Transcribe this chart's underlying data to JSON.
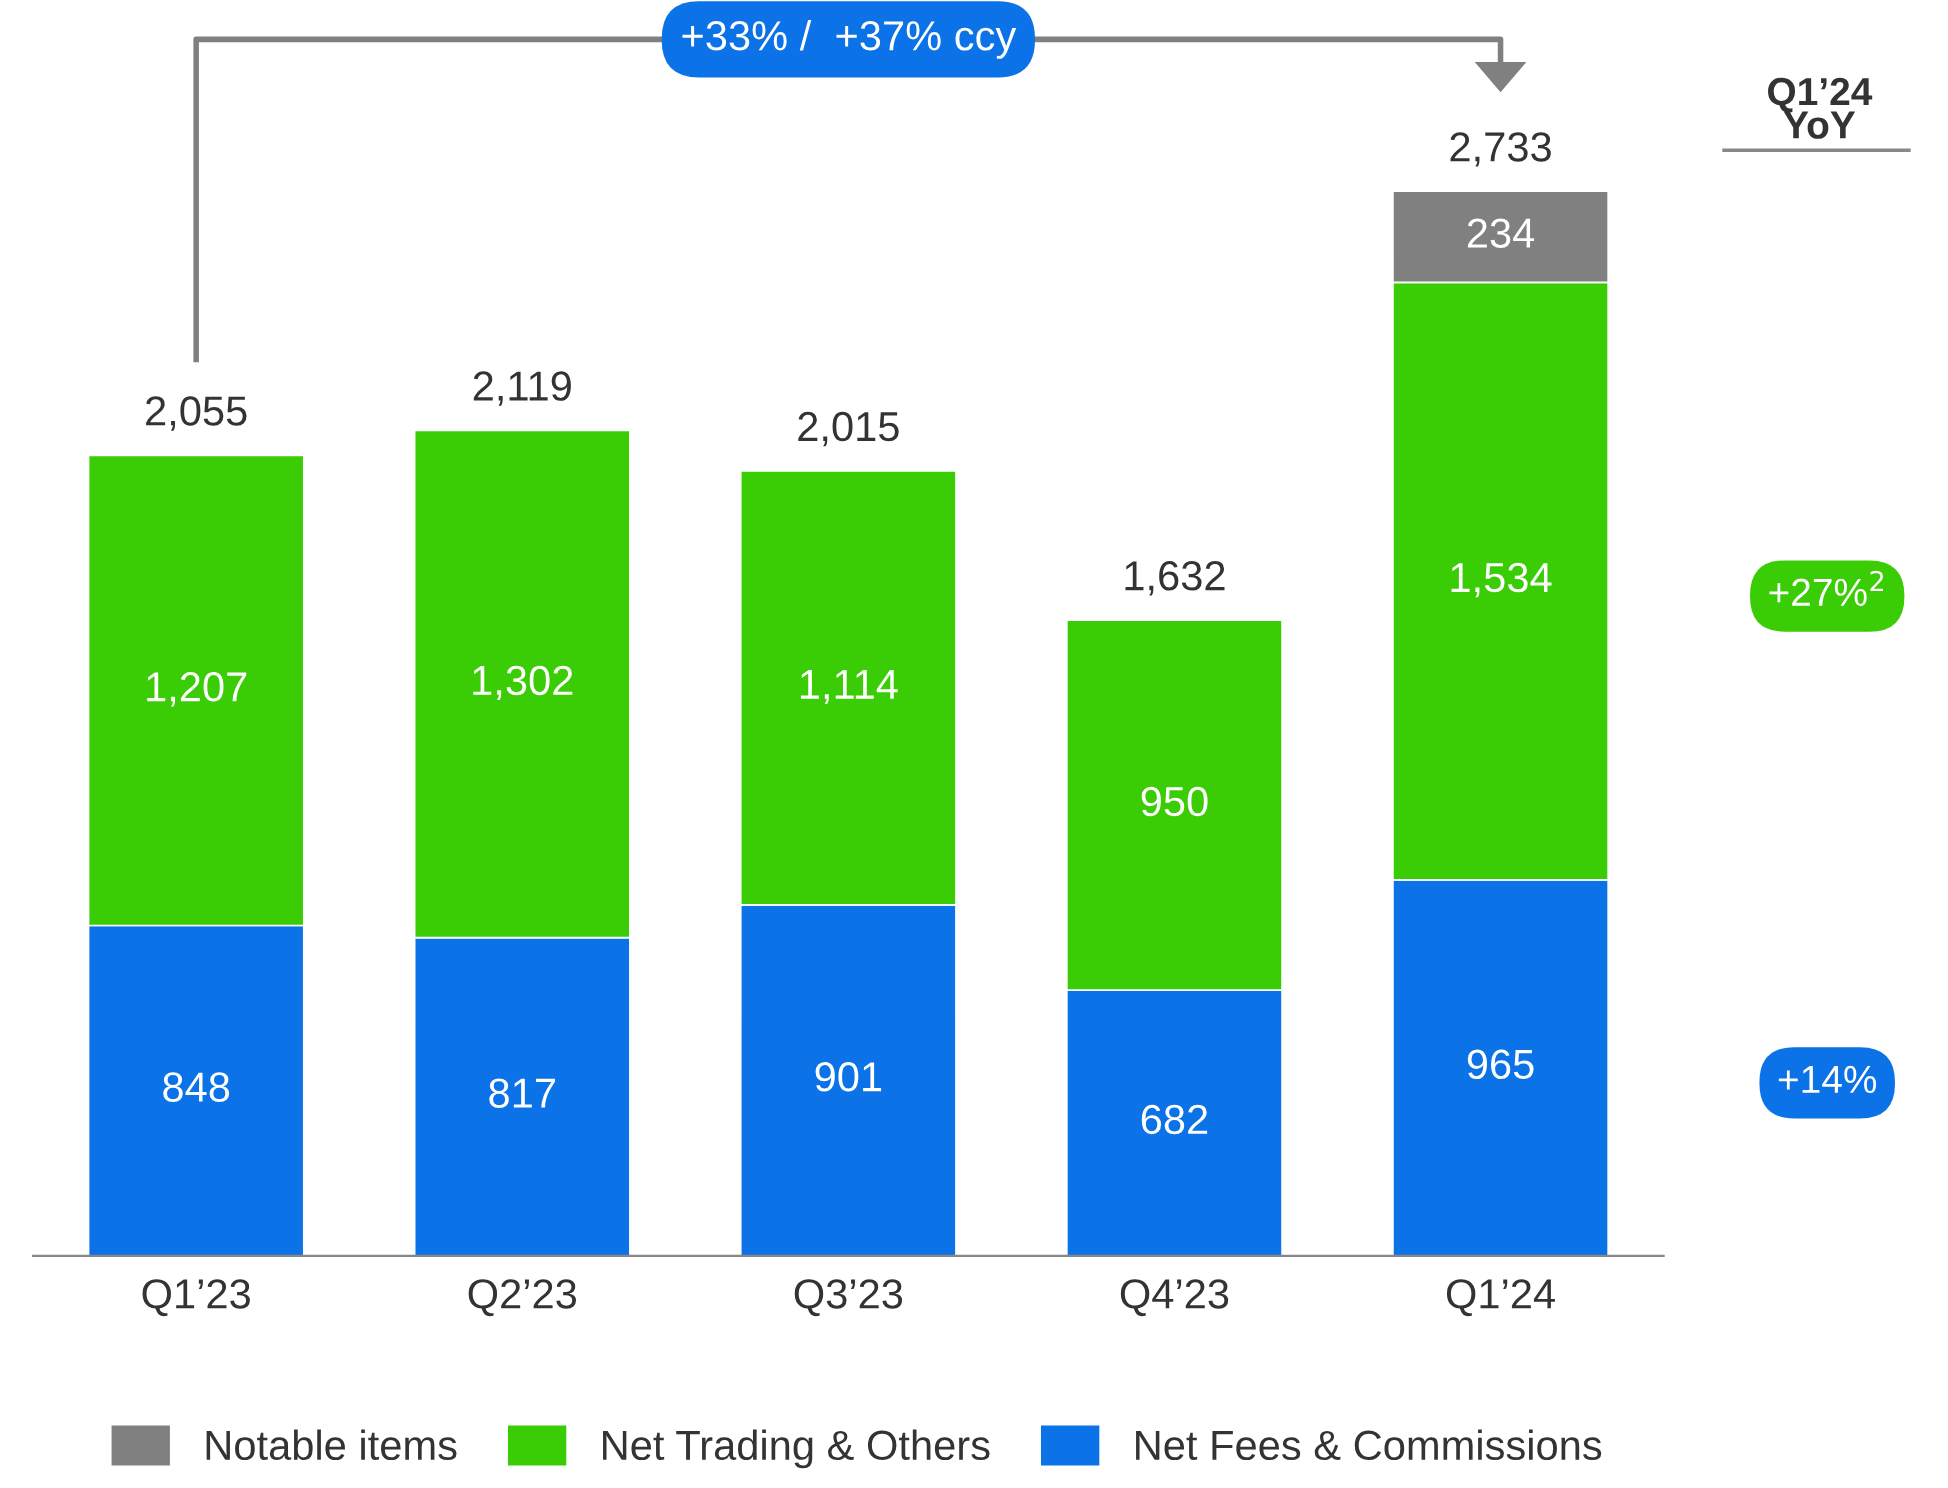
{
  "chart_data": {
    "type": "bar",
    "stacked": true,
    "categories": [
      "Q1’23",
      "Q2’23",
      "Q3’23",
      "Q4’23",
      "Q1’24"
    ],
    "series": [
      {
        "name": "Net Fees & Commissions",
        "color": "#0b72e7",
        "values": [
          848,
          817,
          901,
          682,
          965
        ],
        "value_labels": [
          "848",
          "817",
          "901",
          "682",
          "965"
        ]
      },
      {
        "name": "Net Trading & Others",
        "color": "#3acc04",
        "values": [
          1207,
          1302,
          1114,
          950,
          1534
        ],
        "value_labels": [
          "1,207",
          "1,302",
          "1,114",
          "950",
          "1,534"
        ]
      },
      {
        "name": "Notable items",
        "color": "#808080",
        "values": [
          null,
          null,
          null,
          null,
          234
        ],
        "value_labels": [
          null,
          null,
          null,
          null,
          "234"
        ]
      }
    ],
    "totals": [
      "2,055",
      "2,119",
      "2,015",
      "1,632",
      "2,733"
    ],
    "annotations": [
      "+33% /  +37% ccy",
      "Q1’24\nYoY",
      "+27%$^{2}$",
      "+14%"
    ],
    "tick_labels": "x",
    "grid": false,
    "legend": "bottom"
  }
}
